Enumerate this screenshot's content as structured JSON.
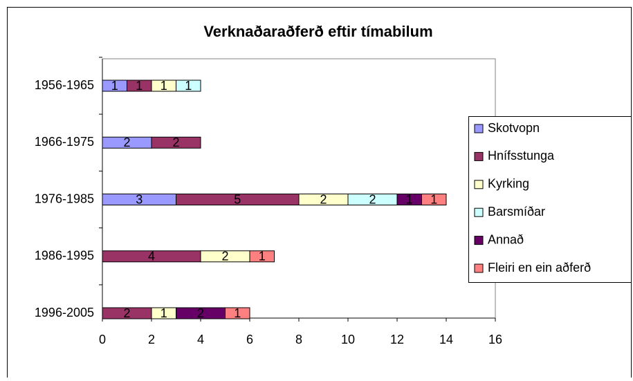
{
  "chart_data": {
    "type": "stacked_bar_horizontal",
    "title": "Verknaðaraðferð eftir tímabilum",
    "categories": [
      "1956-1965",
      "1966-1975",
      "1976-1985",
      "1986-1995",
      "1996-2005"
    ],
    "series": [
      {
        "name": "Skotvopn",
        "color": "#9999ff",
        "values": [
          1,
          2,
          3,
          null,
          null
        ]
      },
      {
        "name": "Hnífsstunga",
        "color": "#993366",
        "values": [
          1,
          2,
          5,
          4,
          2
        ]
      },
      {
        "name": "Kyrking",
        "color": "#ffffcc",
        "values": [
          1,
          null,
          2,
          2,
          1
        ]
      },
      {
        "name": "Barsmíðar",
        "color": "#ccffff",
        "values": [
          1,
          null,
          2,
          null,
          null
        ]
      },
      {
        "name": "Annað",
        "color": "#660066",
        "values": [
          null,
          null,
          1,
          null,
          2
        ]
      },
      {
        "name": "Fleiri en ein aðferð",
        "color": "#ff8080",
        "values": [
          null,
          null,
          1,
          1,
          1
        ]
      }
    ],
    "xlim": [
      0,
      16
    ],
    "xticks": [
      0,
      2,
      4,
      6,
      8,
      10,
      12,
      14,
      16
    ],
    "legend": "right"
  }
}
